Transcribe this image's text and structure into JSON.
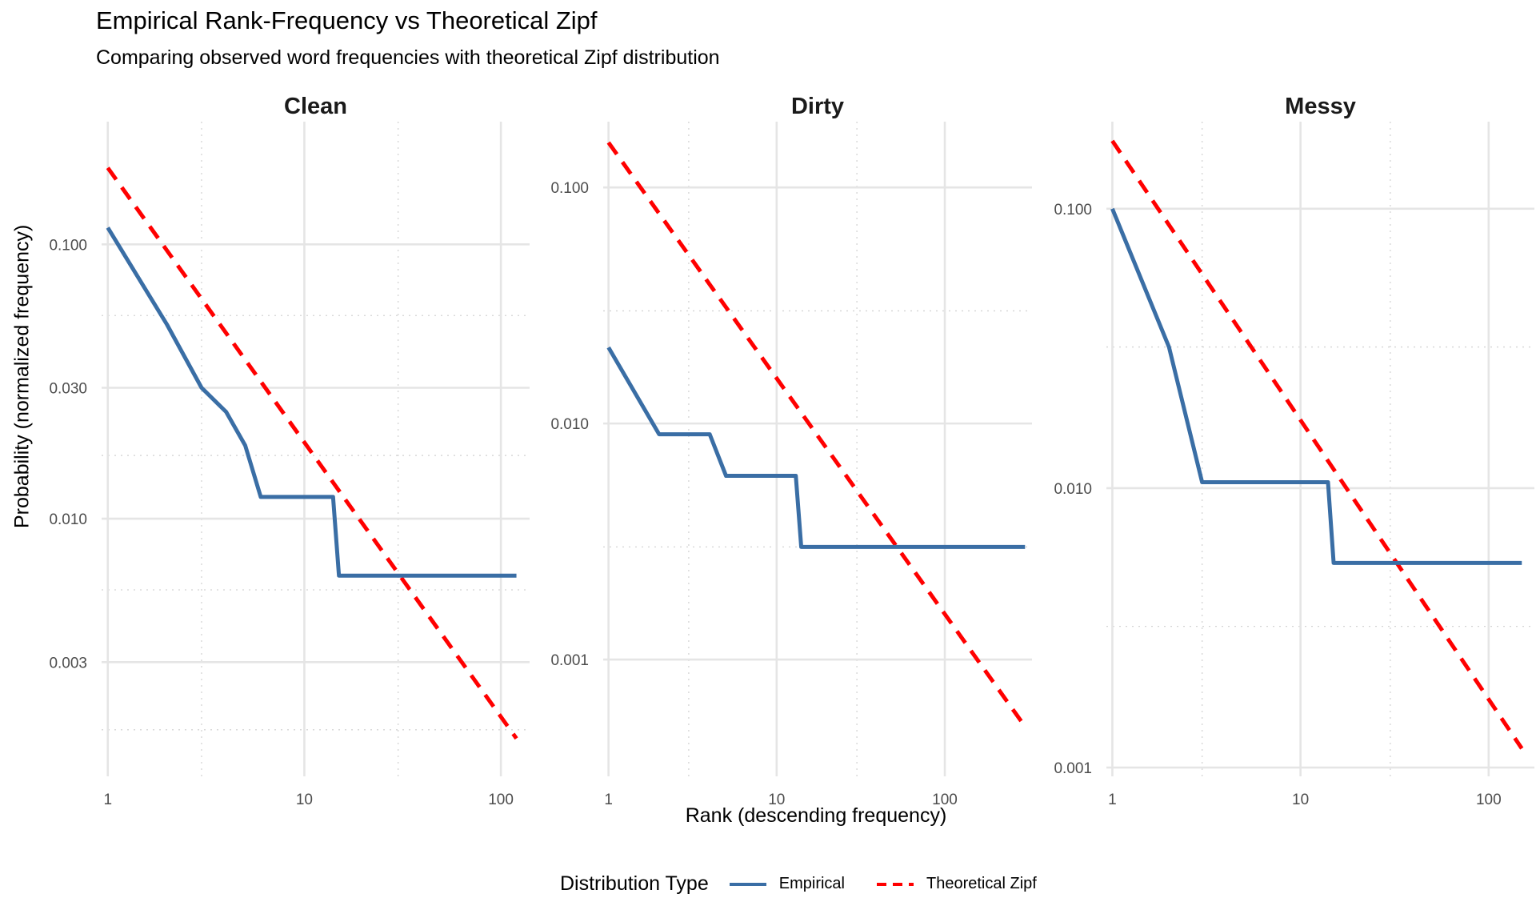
{
  "title": "Empirical Rank-Frequency vs Theoretical Zipf",
  "subtitle": "Comparing observed word frequencies with theoretical Zipf distribution",
  "colors": {
    "empirical": "#3A6EA5",
    "theoretical": "#FF0000",
    "grid_major": "#E5E5E5",
    "grid_minor": "#D4D4D4"
  },
  "chart_data": [
    {
      "type": "line",
      "facet": "Clean",
      "xscale": "log10",
      "yscale": "log10",
      "xlim": [
        0.93,
        140
      ],
      "ylim": [
        0.00115,
        0.28
      ],
      "xticks": [
        1,
        10,
        100
      ],
      "xtick_labels": [
        "1",
        "10",
        "100"
      ],
      "yticks": [
        0.003,
        0.01,
        0.03,
        0.1
      ],
      "ytick_labels": [
        "0.003",
        "0.010",
        "0.030",
        "0.100"
      ],
      "yminor": [
        0.0017,
        0.0055,
        0.017,
        0.055
      ],
      "xminor": [
        3,
        30
      ],
      "series": [
        {
          "name": "Empirical",
          "x": [
            1,
            2,
            3,
            4,
            5,
            6,
            14,
            15,
            120
          ],
          "y": [
            0.115,
            0.051,
            0.03,
            0.0245,
            0.0185,
            0.012,
            0.012,
            0.0062,
            0.0062
          ]
        },
        {
          "name": "Theoretical Zipf",
          "x": [
            1,
            120
          ],
          "y": [
            0.19,
            0.00158
          ]
        }
      ]
    },
    {
      "type": "line",
      "facet": "Dirty",
      "xscale": "log10",
      "yscale": "log10",
      "xlim": [
        0.93,
        330
      ],
      "ylim": [
        0.00032,
        0.19
      ],
      "xticks": [
        1,
        10,
        100
      ],
      "xtick_labels": [
        "1",
        "10",
        "100"
      ],
      "yticks": [
        0.001,
        0.01,
        0.1
      ],
      "ytick_labels": [
        "0.001",
        "0.010",
        "0.100"
      ],
      "yminor": [
        0.0003,
        0.003,
        0.03
      ],
      "xminor": [
        3,
        30
      ],
      "series": [
        {
          "name": "Empirical",
          "x": [
            1,
            2,
            4,
            5,
            13,
            14,
            300
          ],
          "y": [
            0.021,
            0.009,
            0.009,
            0.006,
            0.006,
            0.003,
            0.003
          ]
        },
        {
          "name": "Theoretical Zipf",
          "x": [
            1,
            300
          ],
          "y": [
            0.155,
            0.00052
          ]
        }
      ]
    },
    {
      "type": "line",
      "facet": "Messy",
      "xscale": "log10",
      "yscale": "log10",
      "xlim": [
        0.93,
        175
      ],
      "ylim": [
        0.00093,
        0.205
      ],
      "xticks": [
        1,
        10,
        100
      ],
      "xtick_labels": [
        "1",
        "10",
        "100"
      ],
      "yticks": [
        0.001,
        0.01,
        0.1
      ],
      "ytick_labels": [
        "0.001",
        "0.010",
        "0.100"
      ],
      "yminor": [
        0.0032,
        0.032
      ],
      "xminor": [
        3,
        30
      ],
      "series": [
        {
          "name": "Empirical",
          "x": [
            1,
            2,
            3,
            14,
            15,
            150
          ],
          "y": [
            0.1,
            0.032,
            0.0105,
            0.0105,
            0.0054,
            0.0054
          ]
        },
        {
          "name": "Theoretical Zipf",
          "x": [
            1,
            150
          ],
          "y": [
            0.175,
            0.00117
          ]
        }
      ]
    }
  ],
  "axes": {
    "ylabel": "Probability (normalized frequency)",
    "xlabel": "Rank (descending frequency)"
  },
  "legend": {
    "title": "Distribution Type",
    "items": [
      {
        "label": "Empirical"
      },
      {
        "label": "Theoretical Zipf"
      }
    ]
  }
}
